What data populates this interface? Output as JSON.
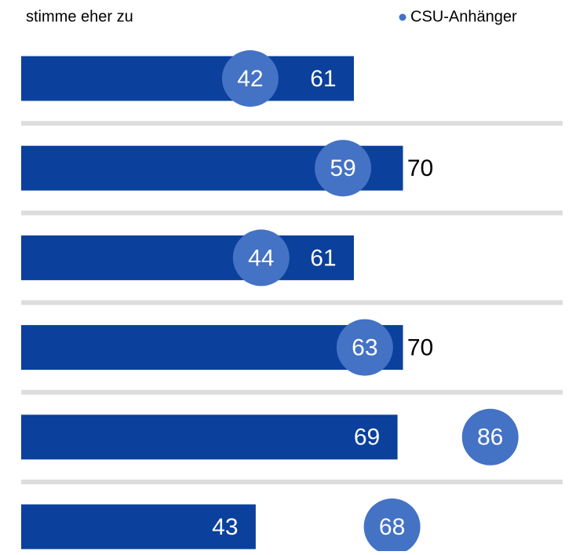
{
  "chart_data": {
    "type": "bar_dot",
    "series": [
      {
        "name": "stimme eher zu",
        "color": "#0b409c",
        "values": [
          61,
          70,
          61,
          70,
          69,
          43
        ]
      },
      {
        "name": "CSU-Anhänger",
        "color": "#4472c4",
        "values": [
          42,
          59,
          44,
          63,
          86,
          68
        ]
      }
    ],
    "xlim": [
      0,
      100
    ]
  }
}
